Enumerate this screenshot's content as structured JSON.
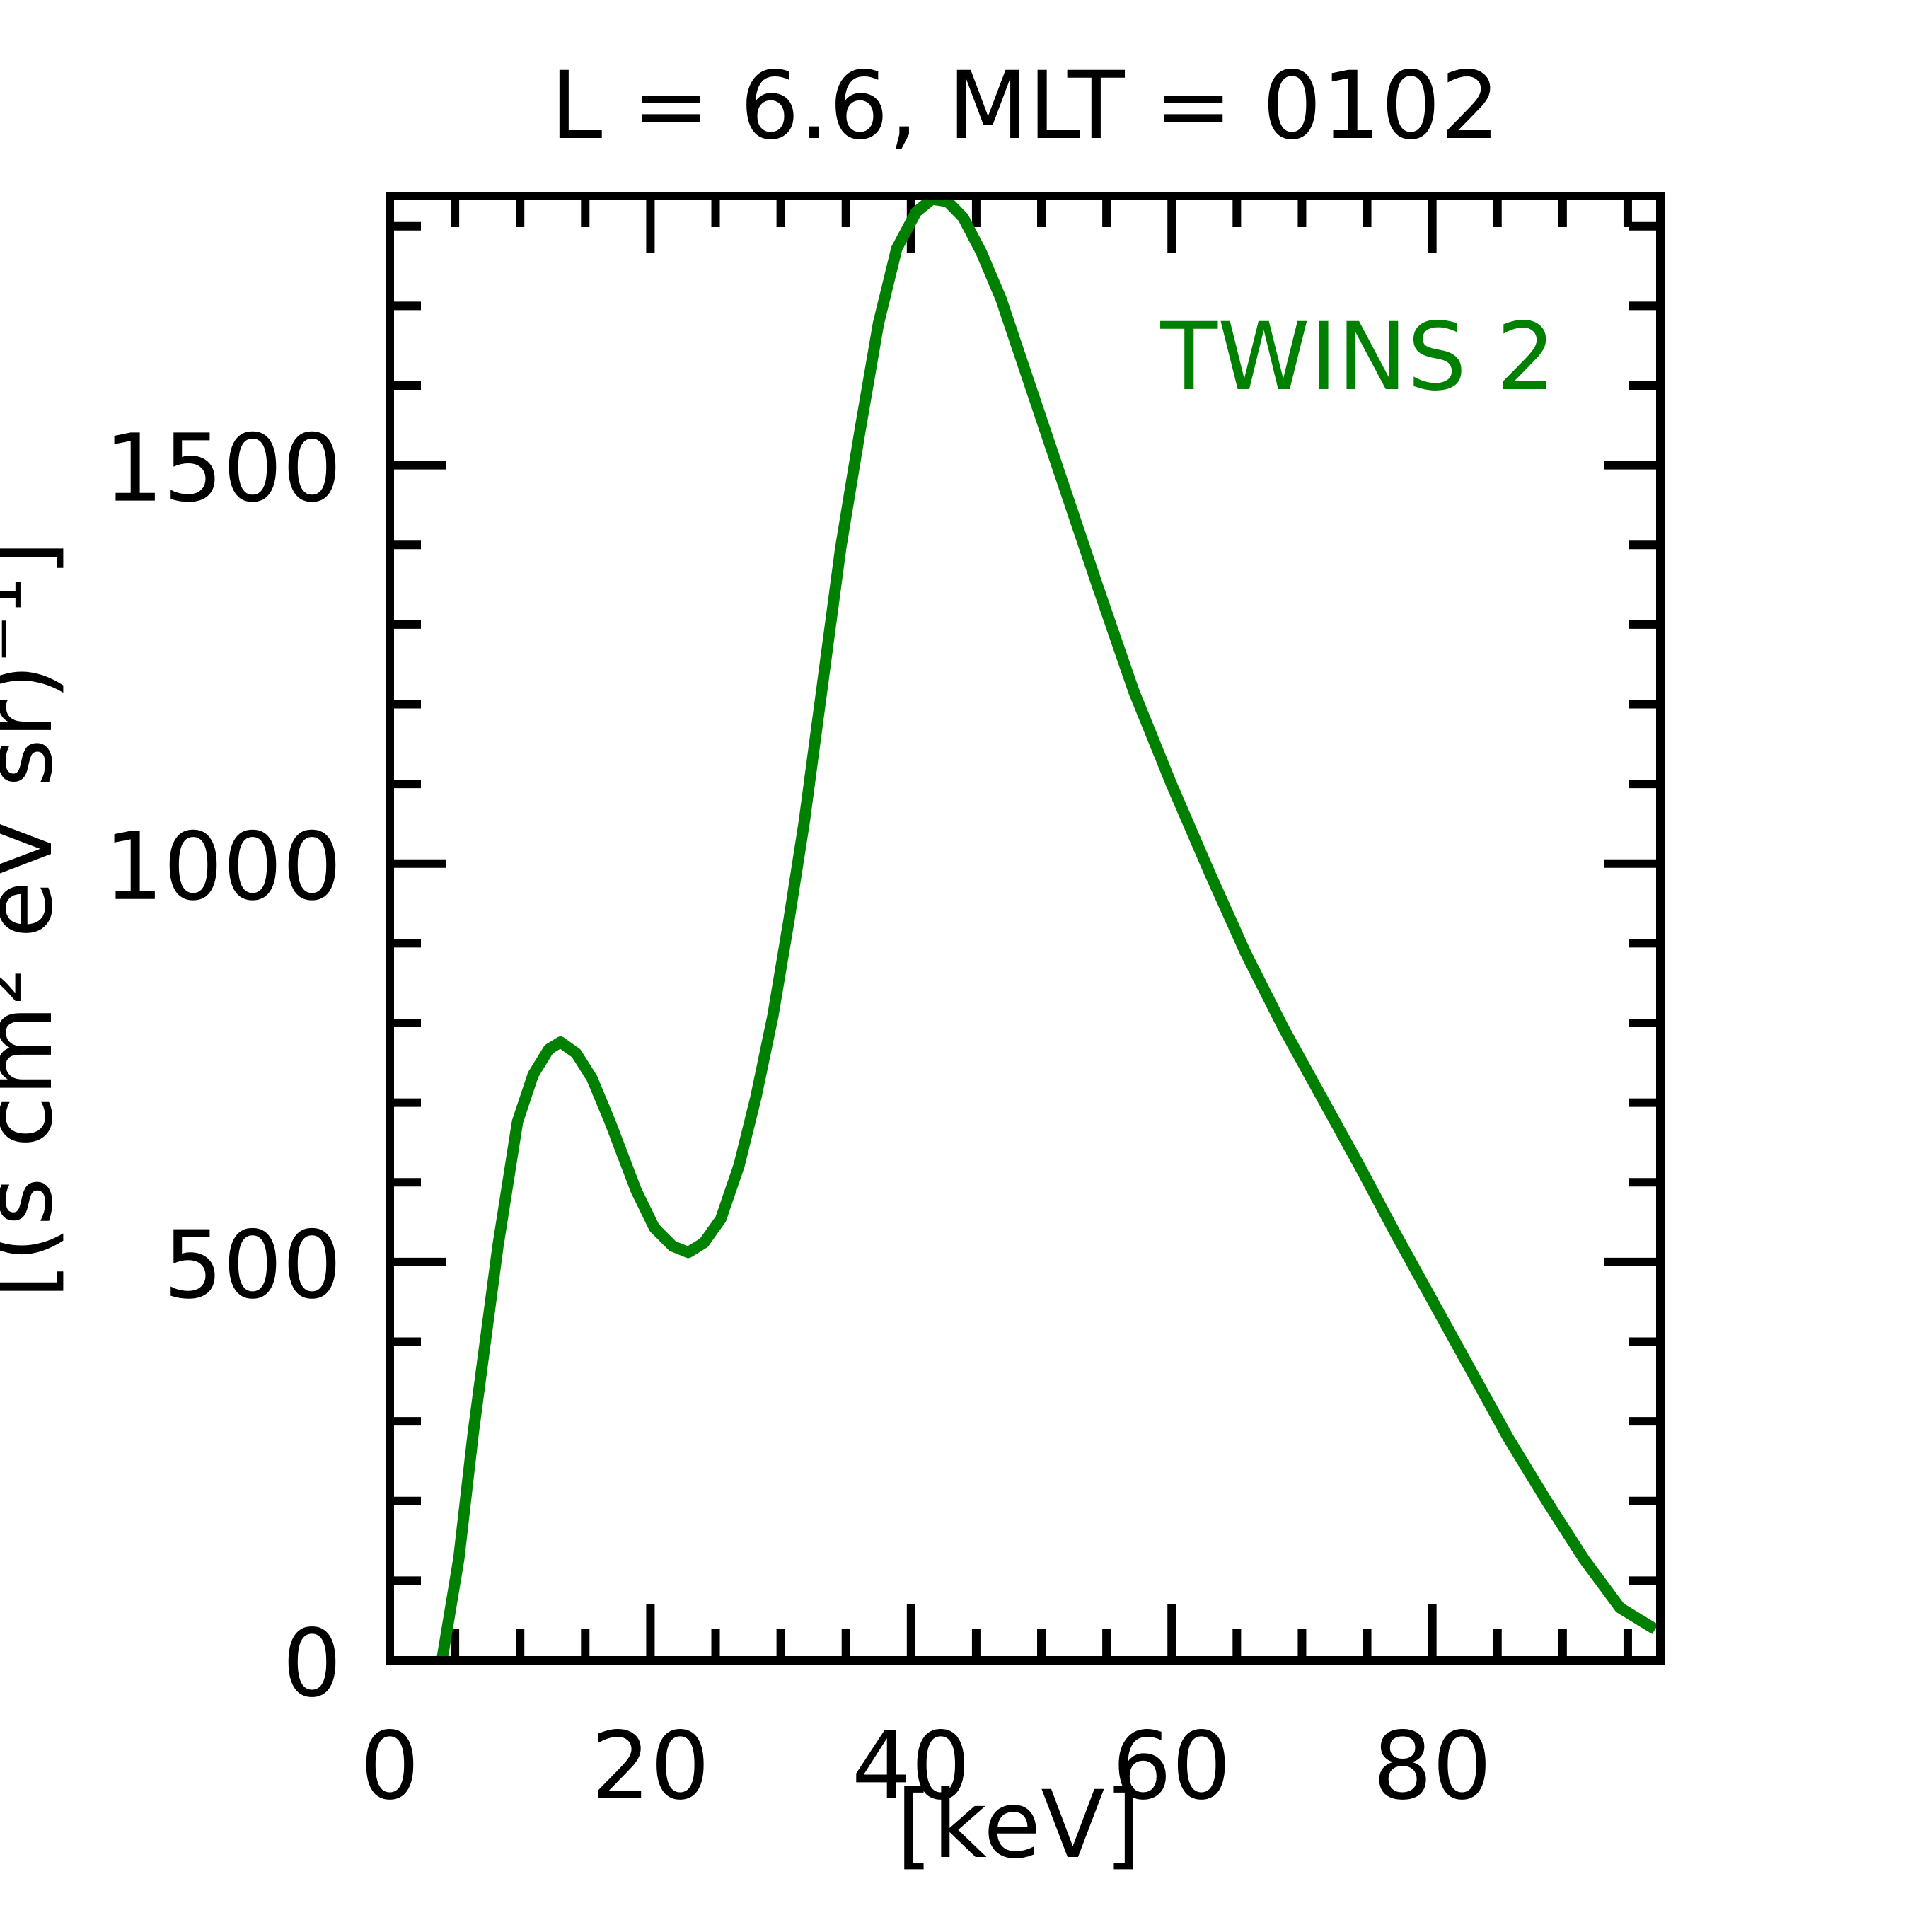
{
  "chart_data": {
    "type": "line",
    "title": "L =  6.6, MLT = 0102",
    "xlabel": "[keV]",
    "ylabel": "[(s cm² eV sr)⁻¹]",
    "annotation": "TWINS 2",
    "xlim": [
      0,
      97.5
    ],
    "ylim": [
      0,
      1838
    ],
    "xticks": [
      0,
      20,
      40,
      60,
      80
    ],
    "yticks": [
      0,
      500,
      1000,
      1500
    ],
    "minor_xticks": [
      5,
      10,
      15,
      25,
      30,
      35,
      45,
      50,
      55,
      65,
      70,
      75,
      85,
      90,
      95
    ],
    "minor_yticks": [
      100,
      200,
      300,
      400,
      600,
      700,
      800,
      900,
      1100,
      1200,
      1300,
      1400,
      1600,
      1700,
      1800
    ],
    "grid": false,
    "series": [
      {
        "name": "TWINS 2",
        "color": "#008000",
        "x": [
          4.0,
          5.3,
          6.4,
          8.3,
          9.8,
          11.0,
          12.2,
          13.1,
          14.3,
          15.5,
          16.9,
          18.9,
          20.3,
          21.7,
          22.9,
          24.1,
          25.4,
          26.8,
          28.1,
          29.4,
          30.6,
          31.8,
          33.2,
          34.6,
          36.1,
          37.5,
          38.9,
          40.4,
          41.6,
          42.8,
          44.0,
          45.4,
          46.9,
          48.5,
          51.4,
          54.3,
          57.1,
          60.0,
          62.9,
          65.7,
          68.6,
          71.5,
          74.4,
          77.2,
          80.1,
          83.0,
          85.8,
          88.7,
          91.6,
          94.4,
          97.1
        ],
        "values": [
          0,
          128,
          285,
          520,
          676,
          735,
          767,
          776,
          762,
          731,
          676,
          590,
          543,
          520,
          512,
          524,
          554,
          621,
          707,
          809,
          926,
          1052,
          1224,
          1396,
          1545,
          1678,
          1772,
          1818,
          1834,
          1831,
          1811,
          1767,
          1709,
          1631,
          1490,
          1349,
          1216,
          1099,
          989,
          887,
          793,
          707,
          621,
          535,
          449,
          363,
          280,
          202,
          128,
          66,
          39
        ]
      }
    ]
  }
}
